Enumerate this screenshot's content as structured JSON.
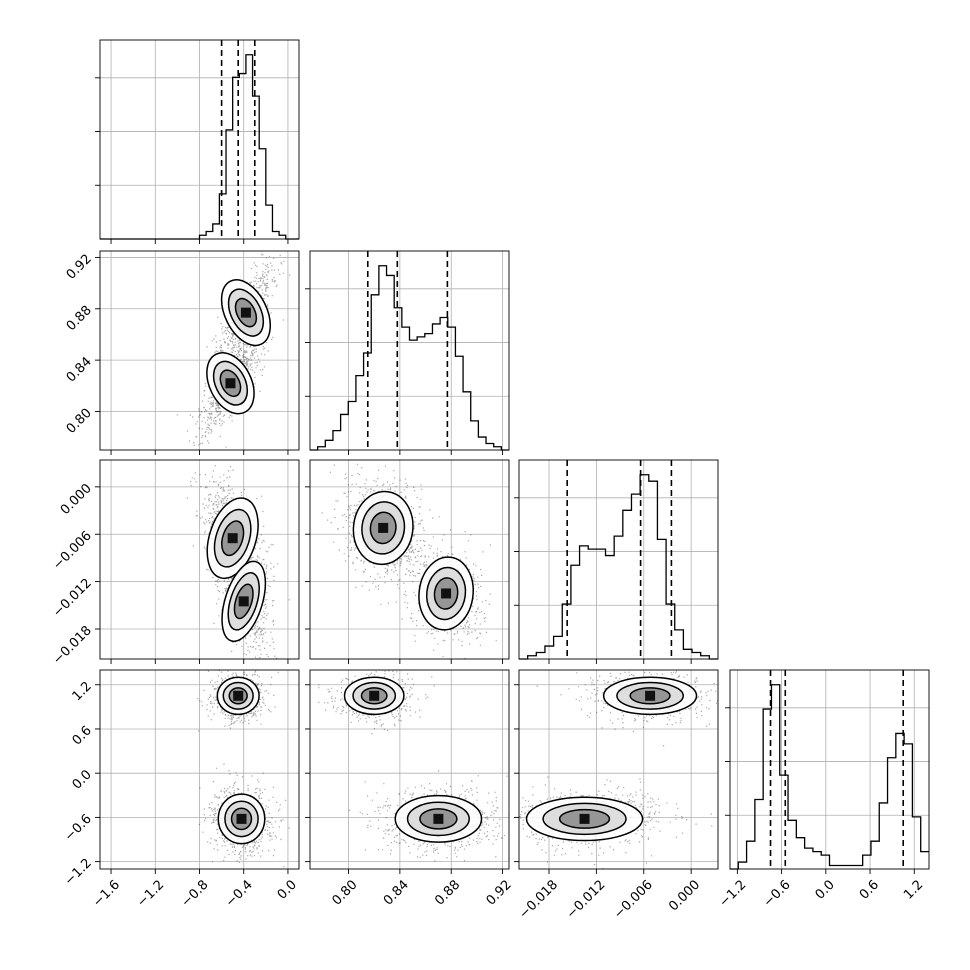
{
  "chart_data": {
    "type": "corner",
    "colors": {
      "line": "#000000",
      "grid": "#b0b0b0",
      "scatter": "#000000"
    },
    "grid": true,
    "parameters": [
      {
        "range": [
          -1.7,
          0.1
        ],
        "ticks": [
          -1.6,
          -1.2,
          -0.8,
          -0.4,
          0.0
        ],
        "tick_labels": [
          "−1.6",
          "−1.2",
          "−0.8",
          "−0.4",
          "0.0"
        ],
        "quantiles": [
          -0.6,
          -0.45,
          -0.3
        ]
      },
      {
        "range": [
          0.77,
          0.925
        ],
        "ticks": [
          0.8,
          0.84,
          0.88,
          0.92
        ],
        "tick_labels": [
          "0.80",
          "0.84",
          "0.88",
          "0.92"
        ],
        "quantiles": [
          0.815,
          0.838,
          0.877
        ]
      },
      {
        "range": [
          -0.0218,
          0.0034
        ],
        "ticks": [
          -0.018,
          -0.012,
          -0.006,
          0.0
        ],
        "tick_labels": [
          "−0.018",
          "−0.012",
          "−0.006",
          "0.000"
        ],
        "quantiles": [
          -0.0157,
          -0.0064,
          -0.0025
        ]
      },
      {
        "range": [
          -1.3,
          1.4
        ],
        "ticks": [
          -1.2,
          -0.6,
          0.0,
          0.6,
          1.2
        ],
        "tick_labels": [
          "−1.2",
          "−0.6",
          "0.0",
          "0.6",
          "1.2"
        ],
        "quantiles": [
          -0.75,
          -0.55,
          1.05
        ]
      }
    ],
    "histograms": [
      {
        "values": [
          0,
          0,
          0,
          0,
          0,
          0,
          0,
          0,
          0,
          0,
          0,
          0,
          0,
          0,
          0,
          1,
          2,
          4,
          12,
          29,
          43,
          44,
          49,
          38,
          24,
          9,
          2,
          1,
          0,
          0
        ]
      },
      {
        "values": [
          0,
          1,
          3,
          6,
          11,
          15,
          23,
          30,
          48,
          57,
          54,
          44,
          38,
          34,
          35,
          36,
          39,
          41,
          38,
          29,
          18,
          9,
          4,
          2,
          1,
          0
        ]
      },
      {
        "values": [
          0,
          1,
          2,
          4,
          7,
          17,
          29,
          35,
          34,
          34,
          32,
          38,
          46,
          51,
          57,
          55,
          37,
          17,
          9,
          3,
          2,
          1,
          0
        ]
      },
      {
        "values": [
          0,
          2,
          8,
          20,
          46,
          53,
          27,
          14,
          9,
          6,
          5,
          4,
          1,
          1,
          1,
          1,
          4,
          8,
          19,
          32,
          39,
          36,
          15,
          5
        ]
      }
    ],
    "blobs": [
      {
        "w": 0.7,
        "mean": [
          -0.42,
          0.878
        ],
        "sd": [
          0.11,
          0.014
        ],
        "rho": 0.4
      },
      {
        "w": 1.0,
        "mean": [
          -0.53,
          0.822
        ],
        "sd": [
          0.1,
          0.013
        ],
        "rho": 0.4
      },
      {
        "w": 0.6,
        "mean": [
          -0.45,
          0.845
        ],
        "sd": [
          0.12,
          0.02
        ],
        "rho": 0.75
      }
    ],
    "pairs": [
      {
        "row": 1,
        "col": 0,
        "rho": 0.75,
        "mix": [
          {
            "w": 1.0,
            "mean": [
              -0.52,
              0.822
            ],
            "sd": [
              0.09,
              0.012
            ]
          },
          {
            "w": 0.7,
            "mean": [
              -0.38,
              0.877
            ],
            "sd": [
              0.09,
              0.013
            ]
          }
        ]
      },
      {
        "row": 2,
        "col": 0,
        "rho": -0.5,
        "mix": [
          {
            "w": 1.0,
            "mean": [
              -0.5,
              -0.0065
            ],
            "sd": [
              0.1,
              0.0025
            ]
          },
          {
            "w": 0.6,
            "mean": [
              -0.4,
              -0.0145
            ],
            "sd": [
              0.08,
              0.0025
            ]
          }
        ]
      },
      {
        "row": 2,
        "col": 1,
        "rho": -0.2,
        "mix": [
          {
            "w": 1.0,
            "mean": [
              0.827,
              -0.0052
            ],
            "sd": [
              0.011,
              0.0022
            ]
          },
          {
            "w": 0.7,
            "mean": [
              0.876,
              -0.0135
            ],
            "sd": [
              0.01,
              0.0022
            ]
          }
        ]
      },
      {
        "row": 3,
        "col": 0,
        "rho": 0.0,
        "mix": [
          {
            "w": 0.7,
            "mean": [
              -0.45,
              1.05
            ],
            "sd": [
              0.09,
              0.12
            ]
          },
          {
            "w": 1.0,
            "mean": [
              -0.42,
              -0.62
            ],
            "sd": [
              0.1,
              0.16
            ]
          }
        ]
      },
      {
        "row": 3,
        "col": 1,
        "rho": 0.0,
        "mix": [
          {
            "w": 0.7,
            "mean": [
              0.82,
              1.05
            ],
            "sd": [
              0.011,
              0.12
            ]
          },
          {
            "w": 1.0,
            "mean": [
              0.87,
              -0.62
            ],
            "sd": [
              0.016,
              0.15
            ]
          }
        ]
      },
      {
        "row": 3,
        "col": 2,
        "rho": 0.0,
        "mix": [
          {
            "w": 0.7,
            "mean": [
              -0.0052,
              1.05
            ],
            "sd": [
              0.0028,
              0.12
            ]
          },
          {
            "w": 1.0,
            "mean": [
              -0.0135,
              -0.62
            ],
            "sd": [
              0.0035,
              0.14
            ]
          }
        ]
      }
    ]
  }
}
